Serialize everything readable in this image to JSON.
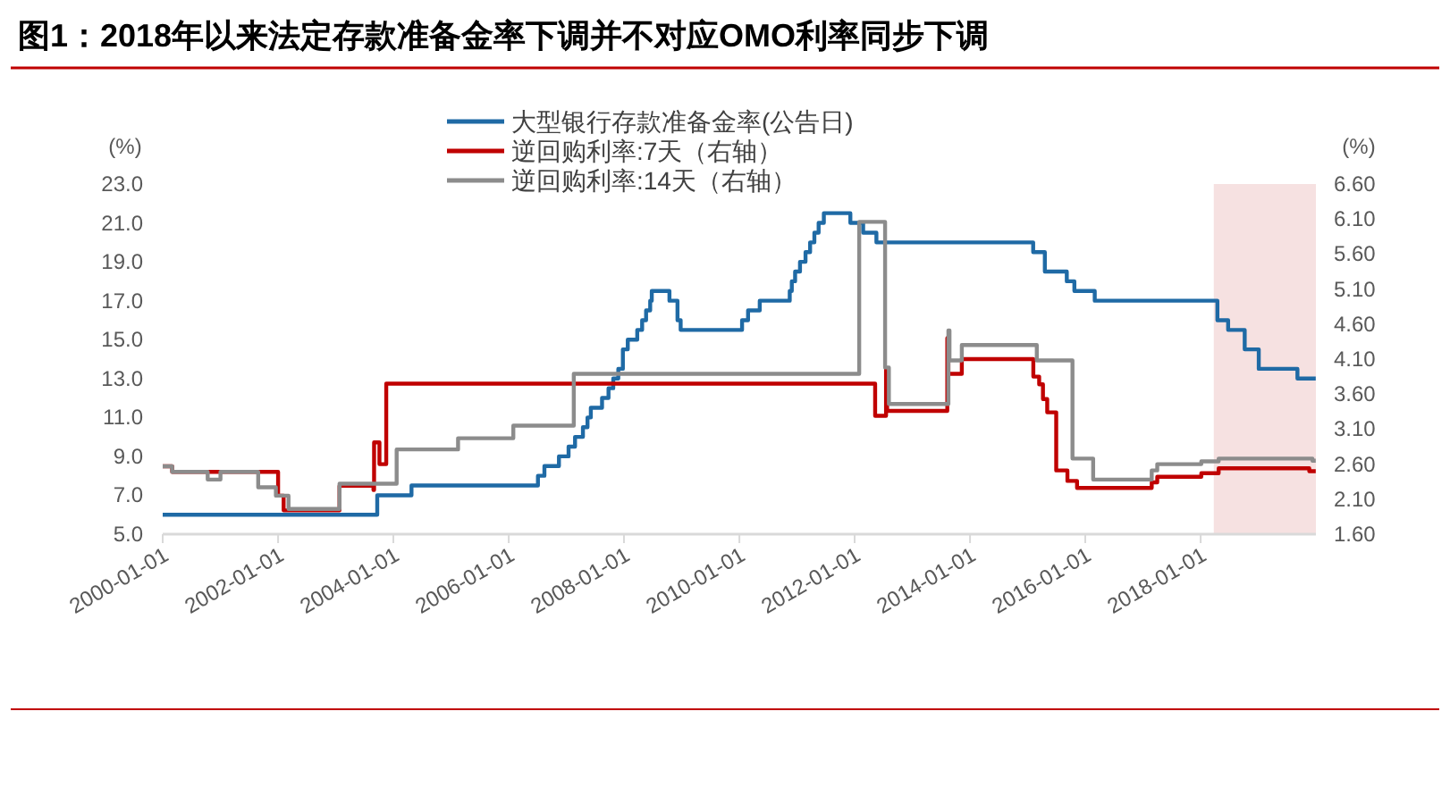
{
  "chart_data": {
    "type": "step",
    "title": "图1：2018年以来法定存款准备金率下调并不对应OMO利率同步下调",
    "ylabel": "(%)",
    "y2label": "(%)",
    "xlim": [
      "2000-01-01",
      "2020-01-01"
    ],
    "xticks": [
      "2000-01-01",
      "2002-01-01",
      "2004-01-01",
      "2006-01-01",
      "2008-01-01",
      "2010-01-01",
      "2012-01-01",
      "2014-01-01",
      "2016-01-01",
      "2018-01-01"
    ],
    "ylim": [
      5,
      23
    ],
    "yticks": [
      {
        "value": 5,
        "label": "5.0"
      },
      {
        "value": 7,
        "label": "7.0"
      },
      {
        "value": 9,
        "label": "9.0"
      },
      {
        "value": 11,
        "label": "11.0"
      },
      {
        "value": 13,
        "label": "13.0"
      },
      {
        "value": 15,
        "label": "15.0"
      },
      {
        "value": 17,
        "label": "17.0"
      },
      {
        "value": 19,
        "label": "19.0"
      },
      {
        "value": 21,
        "label": "21.0"
      },
      {
        "value": 23,
        "label": "23.0"
      }
    ],
    "y2lim": [
      1.6,
      6.6
    ],
    "y2ticks": [
      {
        "value": 1.6,
        "label": "1.60"
      },
      {
        "value": 2.1,
        "label": "2.10"
      },
      {
        "value": 2.6,
        "label": "2.60"
      },
      {
        "value": 3.1,
        "label": "3.10"
      },
      {
        "value": 3.6,
        "label": "3.60"
      },
      {
        "value": 4.1,
        "label": "4.10"
      },
      {
        "value": 4.6,
        "label": "4.60"
      },
      {
        "value": 5.1,
        "label": "5.10"
      },
      {
        "value": 5.6,
        "label": "5.60"
      },
      {
        "value": 6.1,
        "label": "6.10"
      },
      {
        "value": 6.6,
        "label": "6.60"
      }
    ],
    "grid": false,
    "legend": "top",
    "marker": "none",
    "line_style": "solid",
    "bands": [
      {
        "axis": "x",
        "from": "2018-03-25",
        "to": "2020-01-01",
        "color": "#f6e1e1"
      }
    ],
    "series": [
      {
        "name": "大型银行存款准备金率(公告日)",
        "color": "#1f6aa5",
        "axis": "y",
        "x": [
          "2000-01-01",
          "2003-09-21",
          "2004-04-25",
          "2006-07-05",
          "2006-08-15",
          "2006-11-15",
          "2007-01-15",
          "2007-02-25",
          "2007-04-16",
          "2007-05-15",
          "2007-06-05",
          "2007-08-15",
          "2007-09-25",
          "2007-10-25",
          "2007-11-26",
          "2007-12-25",
          "2008-01-25",
          "2008-03-25",
          "2008-04-25",
          "2008-05-20",
          "2008-06-15",
          "2008-06-25",
          "2008-10-15",
          "2008-12-05",
          "2008-12-25",
          "2010-01-18",
          "2010-02-25",
          "2010-05-10",
          "2010-11-16",
          "2010-11-29",
          "2010-12-20",
          "2011-01-20",
          "2011-02-24",
          "2011-03-25",
          "2011-04-21",
          "2011-05-18",
          "2011-06-20",
          "2011-12-05",
          "2012-02-24",
          "2012-05-18",
          "2015-02-05",
          "2015-04-20",
          "2015-09-06",
          "2015-10-24",
          "2016-03-01",
          "2018-04-17",
          "2018-06-24",
          "2018-10-07",
          "2019-01-04",
          "2019-09-06",
          "2019-12-31"
        ],
        "values": [
          6,
          7,
          7.5,
          8,
          8.5,
          9,
          9.5,
          10,
          10.5,
          11,
          11.5,
          12,
          12.5,
          13,
          13.5,
          14.5,
          15,
          15.5,
          16,
          16.5,
          17,
          17.5,
          17,
          16,
          15.5,
          16,
          16.5,
          17,
          17.5,
          18,
          18.5,
          19,
          19.5,
          20,
          20.5,
          21,
          21.5,
          21,
          20.5,
          20,
          19.5,
          18.5,
          18,
          17.5,
          17,
          16,
          15.5,
          14.5,
          13.5,
          13,
          13
        ]
      },
      {
        "name": "逆回购利率:7天（右轴）",
        "color": "#c00000",
        "axis": "y2",
        "x": [
          "2000-01-01",
          "2000-03-01",
          "2002-01-01",
          "2002-02-05",
          "2003-01-25",
          "2003-08-28",
          "2003-09-01",
          "2003-10-05",
          "2003-11-17",
          "2012-05-10",
          "2012-07-18",
          "2012-07-25",
          "2013-08-10",
          "2013-08-17",
          "2013-11-10",
          "2015-02-06",
          "2015-03-15",
          "2015-04-08",
          "2015-05-05",
          "2015-07-01",
          "2015-09-10",
          "2015-11-10",
          "2017-02-25",
          "2017-04-01",
          "2018-01-05",
          "2018-04-25",
          "2019-11-20",
          "2019-12-31"
        ],
        "values": [
          2.57,
          2.49,
          2.15,
          1.94,
          2.29,
          2.23,
          2.91,
          2.6,
          3.75,
          3.29,
          3.95,
          3.36,
          4.4,
          3.89,
          4.1,
          3.85,
          3.74,
          3.53,
          3.34,
          2.51,
          2.36,
          2.26,
          2.34,
          2.42,
          2.47,
          2.54,
          2.5,
          2.5
        ]
      },
      {
        "name": "逆回购利率:14天（右轴）",
        "color": "#8c8c8c",
        "axis": "y2",
        "x": [
          "2000-01-01",
          "2000-03-01",
          "2000-10-12",
          "2001-01-01",
          "2001-08-28",
          "2001-12-18",
          "2002-03-08",
          "2003-01-25",
          "2004-01-22",
          "2005-02-14",
          "2006-01-30",
          "2007-02-17",
          "2012-01-30",
          "2012-07-12",
          "2012-08-05",
          "2013-08-17",
          "2013-08-24",
          "2013-11-10",
          "2015-02-28",
          "2015-10-12",
          "2016-02-20",
          "2017-02-25",
          "2017-04-01",
          "2018-01-05",
          "2018-04-25",
          "2019-12-10",
          "2019-12-31"
        ],
        "values": [
          2.57,
          2.49,
          2.38,
          2.49,
          2.27,
          2.15,
          1.96,
          2.32,
          2.81,
          2.97,
          3.15,
          3.89,
          6.06,
          3.98,
          3.46,
          4.51,
          4.08,
          4.3,
          4.08,
          2.68,
          2.38,
          2.51,
          2.6,
          2.64,
          2.68,
          2.65,
          2.65
        ]
      }
    ]
  }
}
